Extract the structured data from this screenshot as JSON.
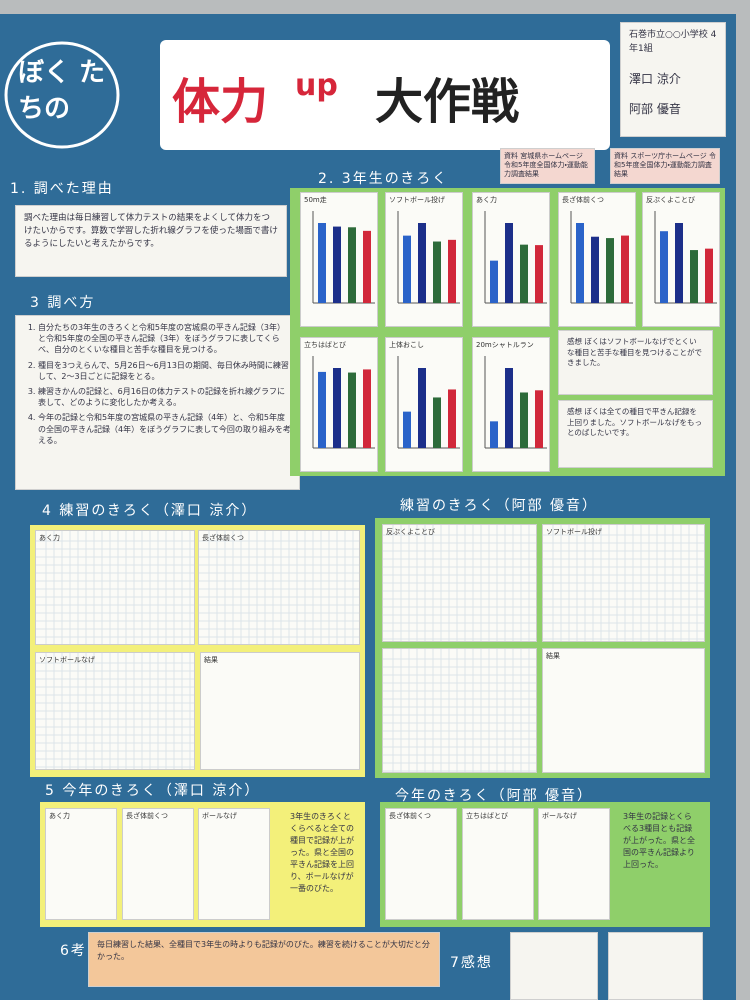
{
  "header": {
    "circle": "ぼく たちの",
    "title_1": "体力",
    "title_up": "up",
    "title_2": "大作戦",
    "school": "石巻市立○○小学校 4年1組",
    "names": [
      "澤口 涼介",
      "阿部 優音"
    ]
  },
  "reason": {
    "heading": "1. 調べた理由",
    "body": "調べた理由は毎日練習して体力テストの結果をよくして体力をつけたいからです。算数で学習した折れ線グラフを使った場面で書けるようにしたいと考えたからです。"
  },
  "method": {
    "heading": "3 調べ方",
    "items": [
      "自分たちの3年生のきろくと令和5年度の宮城県の平きん記録（3年）と令和5年度の全国の平きん記録（3年）をぼうグラフに表してくらべ、自分のとくいな種目と苦手な種目を見つける。",
      "種目を3つえらんで、5月26日〜6月13日の期間、毎日休み時間に練習して、2〜3日ごとに記録をとる。",
      "練習きかんの記録と、6月16日の体力テストの記録を折れ線グラフに表して、どのように変化したか考える。",
      "今年の記録と令和5年度の宮城県の平きん記録（4年）と、令和5年度の全国の平きん記録（4年）をぼうグラフに表して今回の取り組みを考える。"
    ]
  },
  "grade3": {
    "heading": "2. 3年生のきろく",
    "sources": [
      "資料 宮城県ホームページ 令和5年度全国体力・運動能力調査結果",
      "資料 スポーツ庁ホームページ 令和5年度全国体力・運動能力調査結果"
    ],
    "charts": [
      {
        "title": "50m走",
        "values": [
          11.2,
          10.7,
          10.6,
          10.1
        ]
      },
      {
        "title": "ソフトボール投げ",
        "values": [
          16,
          19,
          14.6,
          15.0
        ]
      },
      {
        "title": "あく力",
        "values": [
          9,
          17,
          12.4,
          12.3
        ]
      },
      {
        "title": "長ざ体前くつ",
        "values": [
          35,
          29,
          28.4,
          29.5
        ]
      },
      {
        "title": "反ぷくよことび",
        "values": [
          35,
          39,
          25.8,
          26.5
        ]
      },
      {
        "title": "立ちはばとび",
        "values": [
          117,
          123,
          116,
          120.8
        ]
      },
      {
        "title": "上体おこし",
        "values": [
          10,
          22,
          13.9,
          16.1
        ]
      },
      {
        "title": "20mシャトルラン",
        "values": [
          11,
          33,
          22.9,
          23.8
        ]
      }
    ],
    "notes": [
      "感想 ぼくはソフトボールなげでとくいな種目と苦手な種目を見つけることができました。",
      "感想 ぼくは全ての種目で平きん記録を上回りました。ソフトボールなげをもっとのばしたいです。"
    ]
  },
  "practice": {
    "headings": [
      "4 練習のきろく（澤口 涼介）",
      "練習のきろく（阿部 優音）"
    ],
    "charts": [
      "あく力",
      "長ざ体前くつ",
      "ソフトボールなげ",
      "反ぷくよことび",
      "ソフトボール投げ"
    ],
    "results": [
      "結果",
      "結果"
    ]
  },
  "this_year": {
    "headings": [
      "5 今年のきろく（澤口 涼介）",
      "今年のきろく（阿部 優音）"
    ],
    "charts": [
      "あく力",
      "長ざ体前くつ",
      "ボールなげ",
      "長ざ体前くつ",
      "立ちはばとび",
      "ボールなげ"
    ],
    "notes": [
      "3年生のきろくとくらべると全ての種目で記録が上がった。県と全国の平きん記録を上回り、ボールなげが一番のびた。",
      "3年生の記録とくらべる3種目とも記録が上がった。県と全国の平きん記録より上回った。"
    ]
  },
  "footer": {
    "consider": "6考さつ",
    "consider_body": "毎日練習した結果、全種目で3年生の時よりも記録がのびた。練習を続けることが大切だと分かった。",
    "impression": "7感想"
  }
}
